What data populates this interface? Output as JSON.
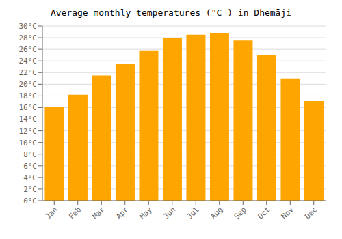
{
  "chart_data": {
    "type": "bar",
    "title": "Average monthly temperatures (°C ) in Dhemāji",
    "categories": [
      "Jan",
      "Feb",
      "Mar",
      "Apr",
      "May",
      "Jun",
      "Jul",
      "Aug",
      "Sep",
      "Oct",
      "Nov",
      "Dec"
    ],
    "values": [
      16.1,
      18.2,
      21.5,
      23.5,
      25.8,
      28.0,
      28.5,
      28.7,
      27.5,
      25.0,
      21.0,
      17.1
    ],
    "color": "#FFA500",
    "ylim": [
      0,
      30
    ],
    "yticks": [
      {
        "value": 0,
        "label": "0°C"
      },
      {
        "value": 2,
        "label": "2°C"
      },
      {
        "value": 4,
        "label": "4°C"
      },
      {
        "value": 6,
        "label": "6°C"
      },
      {
        "value": 8,
        "label": "8°C"
      },
      {
        "value": 10,
        "label": "10°C"
      },
      {
        "value": 12,
        "label": "12°C"
      },
      {
        "value": 14,
        "label": "14°C"
      },
      {
        "value": 16,
        "label": "16°C"
      },
      {
        "value": 18,
        "label": "18°C"
      },
      {
        "value": 20,
        "label": "20°C"
      },
      {
        "value": 22,
        "label": "22°C"
      },
      {
        "value": 24,
        "label": "24°C"
      },
      {
        "value": 26,
        "label": "26°C"
      },
      {
        "value": 28,
        "label": "28°C"
      },
      {
        "value": 30,
        "label": "30°C"
      }
    ],
    "grid": true
  }
}
